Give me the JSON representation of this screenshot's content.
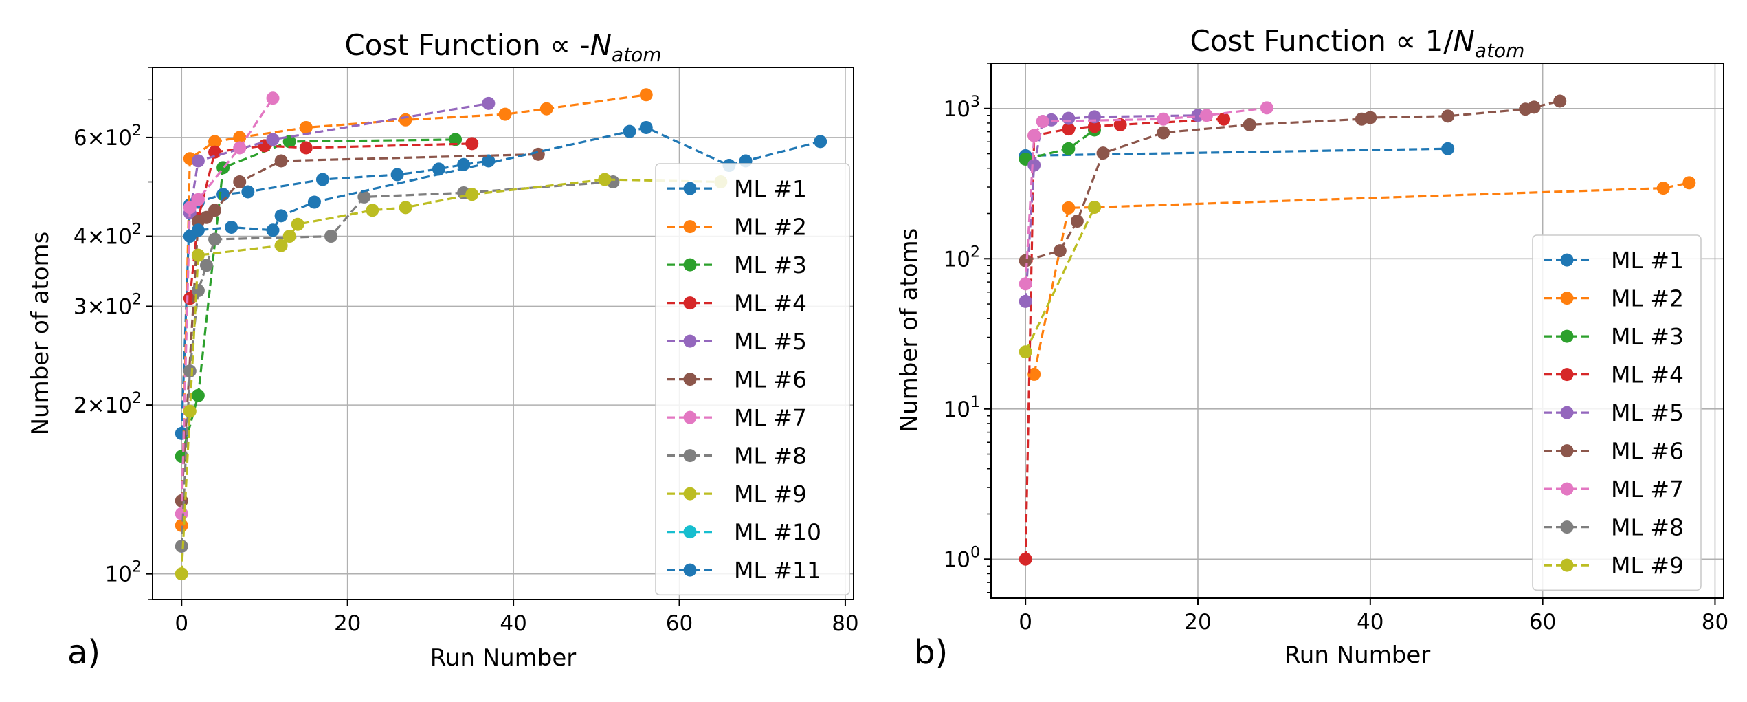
{
  "panel_labels": [
    "a)",
    "b)"
  ],
  "chart_data": [
    {
      "type": "line",
      "title_prefix": "Cost Function ∝ -",
      "title_var": "N",
      "title_sub": "atom",
      "xlabel": "Run Number",
      "ylabel": "Number of atoms",
      "yscale": "log",
      "xlim": [
        -3.5,
        81
      ],
      "ylim": [
        90,
        800
      ],
      "xticks": [
        0,
        20,
        40,
        60,
        80
      ],
      "yticks": [
        {
          "value": 100,
          "base": "10",
          "exp": "2"
        },
        {
          "value": 200,
          "base": "2×10",
          "exp": "2"
        },
        {
          "value": 300,
          "base": "3×10",
          "exp": "2"
        },
        {
          "value": 400,
          "base": "4×10",
          "exp": "2"
        },
        {
          "value": 600,
          "base": "6×10",
          "exp": "2"
        }
      ],
      "grid": true,
      "legend_position": "right",
      "series": [
        {
          "name": "ML #1",
          "color": "#1f77b4",
          "x": [
            0,
            1,
            2,
            5,
            8,
            17,
            26,
            31,
            34,
            37
          ],
          "y": [
            178,
            455,
            460,
            475,
            480,
            505,
            515,
            527,
            537,
            545
          ]
        },
        {
          "name": "ML #2",
          "color": "#ff7f0e",
          "x": [
            0,
            1,
            4,
            7,
            15,
            27,
            39,
            44,
            56
          ],
          "y": [
            122,
            550,
            590,
            600,
            625,
            645,
            660,
            675,
            715
          ]
        },
        {
          "name": "ML #3",
          "color": "#2ca02c",
          "x": [
            0,
            2,
            5,
            13,
            33
          ],
          "y": [
            162,
            208,
            530,
            590,
            595
          ]
        },
        {
          "name": "ML #4",
          "color": "#d62728",
          "x": [
            1,
            2,
            4,
            10,
            15,
            35
          ],
          "y": [
            310,
            430,
            565,
            580,
            575,
            585
          ]
        },
        {
          "name": "ML #5",
          "color": "#9467bd",
          "x": [
            1,
            2,
            11,
            37
          ],
          "y": [
            440,
            545,
            595,
            690
          ]
        },
        {
          "name": "ML #6",
          "color": "#8c564b",
          "x": [
            0,
            2,
            3,
            4,
            7,
            12,
            43
          ],
          "y": [
            135,
            425,
            432,
            445,
            500,
            545,
            560
          ]
        },
        {
          "name": "ML #7",
          "color": "#e377c2",
          "x": [
            0,
            1,
            2,
            7,
            11
          ],
          "y": [
            128,
            450,
            465,
            575,
            705
          ]
        },
        {
          "name": "ML #8",
          "color": "#7f7f7f",
          "x": [
            0,
            1,
            2,
            3,
            4,
            18,
            22,
            34,
            52
          ],
          "y": [
            112,
            230,
            320,
            355,
            395,
            400,
            470,
            478,
            500
          ]
        },
        {
          "name": "ML #9",
          "color": "#bcbd22",
          "x": [
            0,
            1,
            2,
            12,
            13,
            14,
            23,
            27,
            35,
            51,
            65
          ],
          "y": [
            100,
            195,
            370,
            385,
            400,
            420,
            445,
            450,
            475,
            505,
            500
          ]
        },
        {
          "name": "ML #10",
          "color": "#17becf",
          "x": [],
          "y": []
        },
        {
          "name": "ML #11",
          "color": "#1f77b4",
          "x": [
            1,
            2,
            6,
            11,
            12,
            16,
            54,
            56,
            66,
            68,
            77
          ],
          "y": [
            400,
            410,
            415,
            410,
            435,
            460,
            615,
            625,
            535,
            545,
            590
          ]
        }
      ]
    },
    {
      "type": "line",
      "title_prefix": "Cost Function ∝ 1/",
      "title_var": "N",
      "title_sub": "atom",
      "xlabel": "Run Number",
      "ylabel": "Number of atoms",
      "yscale": "log",
      "xlim": [
        -4,
        81
      ],
      "ylim": [
        0.55,
        2000
      ],
      "xticks": [
        0,
        20,
        40,
        60,
        80
      ],
      "yticks": [
        {
          "value": 1,
          "base": "10",
          "exp": "0"
        },
        {
          "value": 10,
          "base": "10",
          "exp": "1"
        },
        {
          "value": 100,
          "base": "10",
          "exp": "2"
        },
        {
          "value": 1000,
          "base": "10",
          "exp": "3"
        }
      ],
      "grid": true,
      "legend_position": "lower right",
      "series": [
        {
          "name": "ML #1",
          "color": "#1f77b4",
          "x": [
            0,
            49
          ],
          "y": [
            485,
            540
          ]
        },
        {
          "name": "ML #2",
          "color": "#ff7f0e",
          "x": [
            1,
            5,
            8,
            74,
            77
          ],
          "y": [
            17,
            218,
            220,
            295,
            320
          ]
        },
        {
          "name": "ML #3",
          "color": "#2ca02c",
          "x": [
            0,
            5,
            8
          ],
          "y": [
            460,
            540,
            720
          ]
        },
        {
          "name": "ML #4",
          "color": "#d62728",
          "x": [
            0,
            1,
            5,
            8,
            11,
            23
          ],
          "y": [
            1,
            660,
            730,
            760,
            780,
            850
          ]
        },
        {
          "name": "ML #5",
          "color": "#9467bd",
          "x": [
            0,
            1,
            2,
            3,
            5,
            8,
            20
          ],
          "y": [
            52,
            420,
            820,
            840,
            860,
            880,
            900
          ]
        },
        {
          "name": "ML #6",
          "color": "#8c564b",
          "x": [
            0,
            4,
            6,
            9,
            16,
            26,
            39,
            40,
            49,
            58,
            59,
            62
          ],
          "y": [
            97,
            113,
            178,
            505,
            690,
            780,
            850,
            870,
            890,
            990,
            1020,
            1120
          ]
        },
        {
          "name": "ML #7",
          "color": "#e377c2",
          "x": [
            0,
            1,
            2,
            16,
            21,
            28
          ],
          "y": [
            68,
            660,
            820,
            850,
            900,
            1010
          ]
        },
        {
          "name": "ML #8",
          "color": "#7f7f7f",
          "x": [],
          "y": []
        },
        {
          "name": "ML #9",
          "color": "#bcbd22",
          "x": [
            0,
            8
          ],
          "y": [
            24,
            220
          ]
        }
      ]
    }
  ]
}
